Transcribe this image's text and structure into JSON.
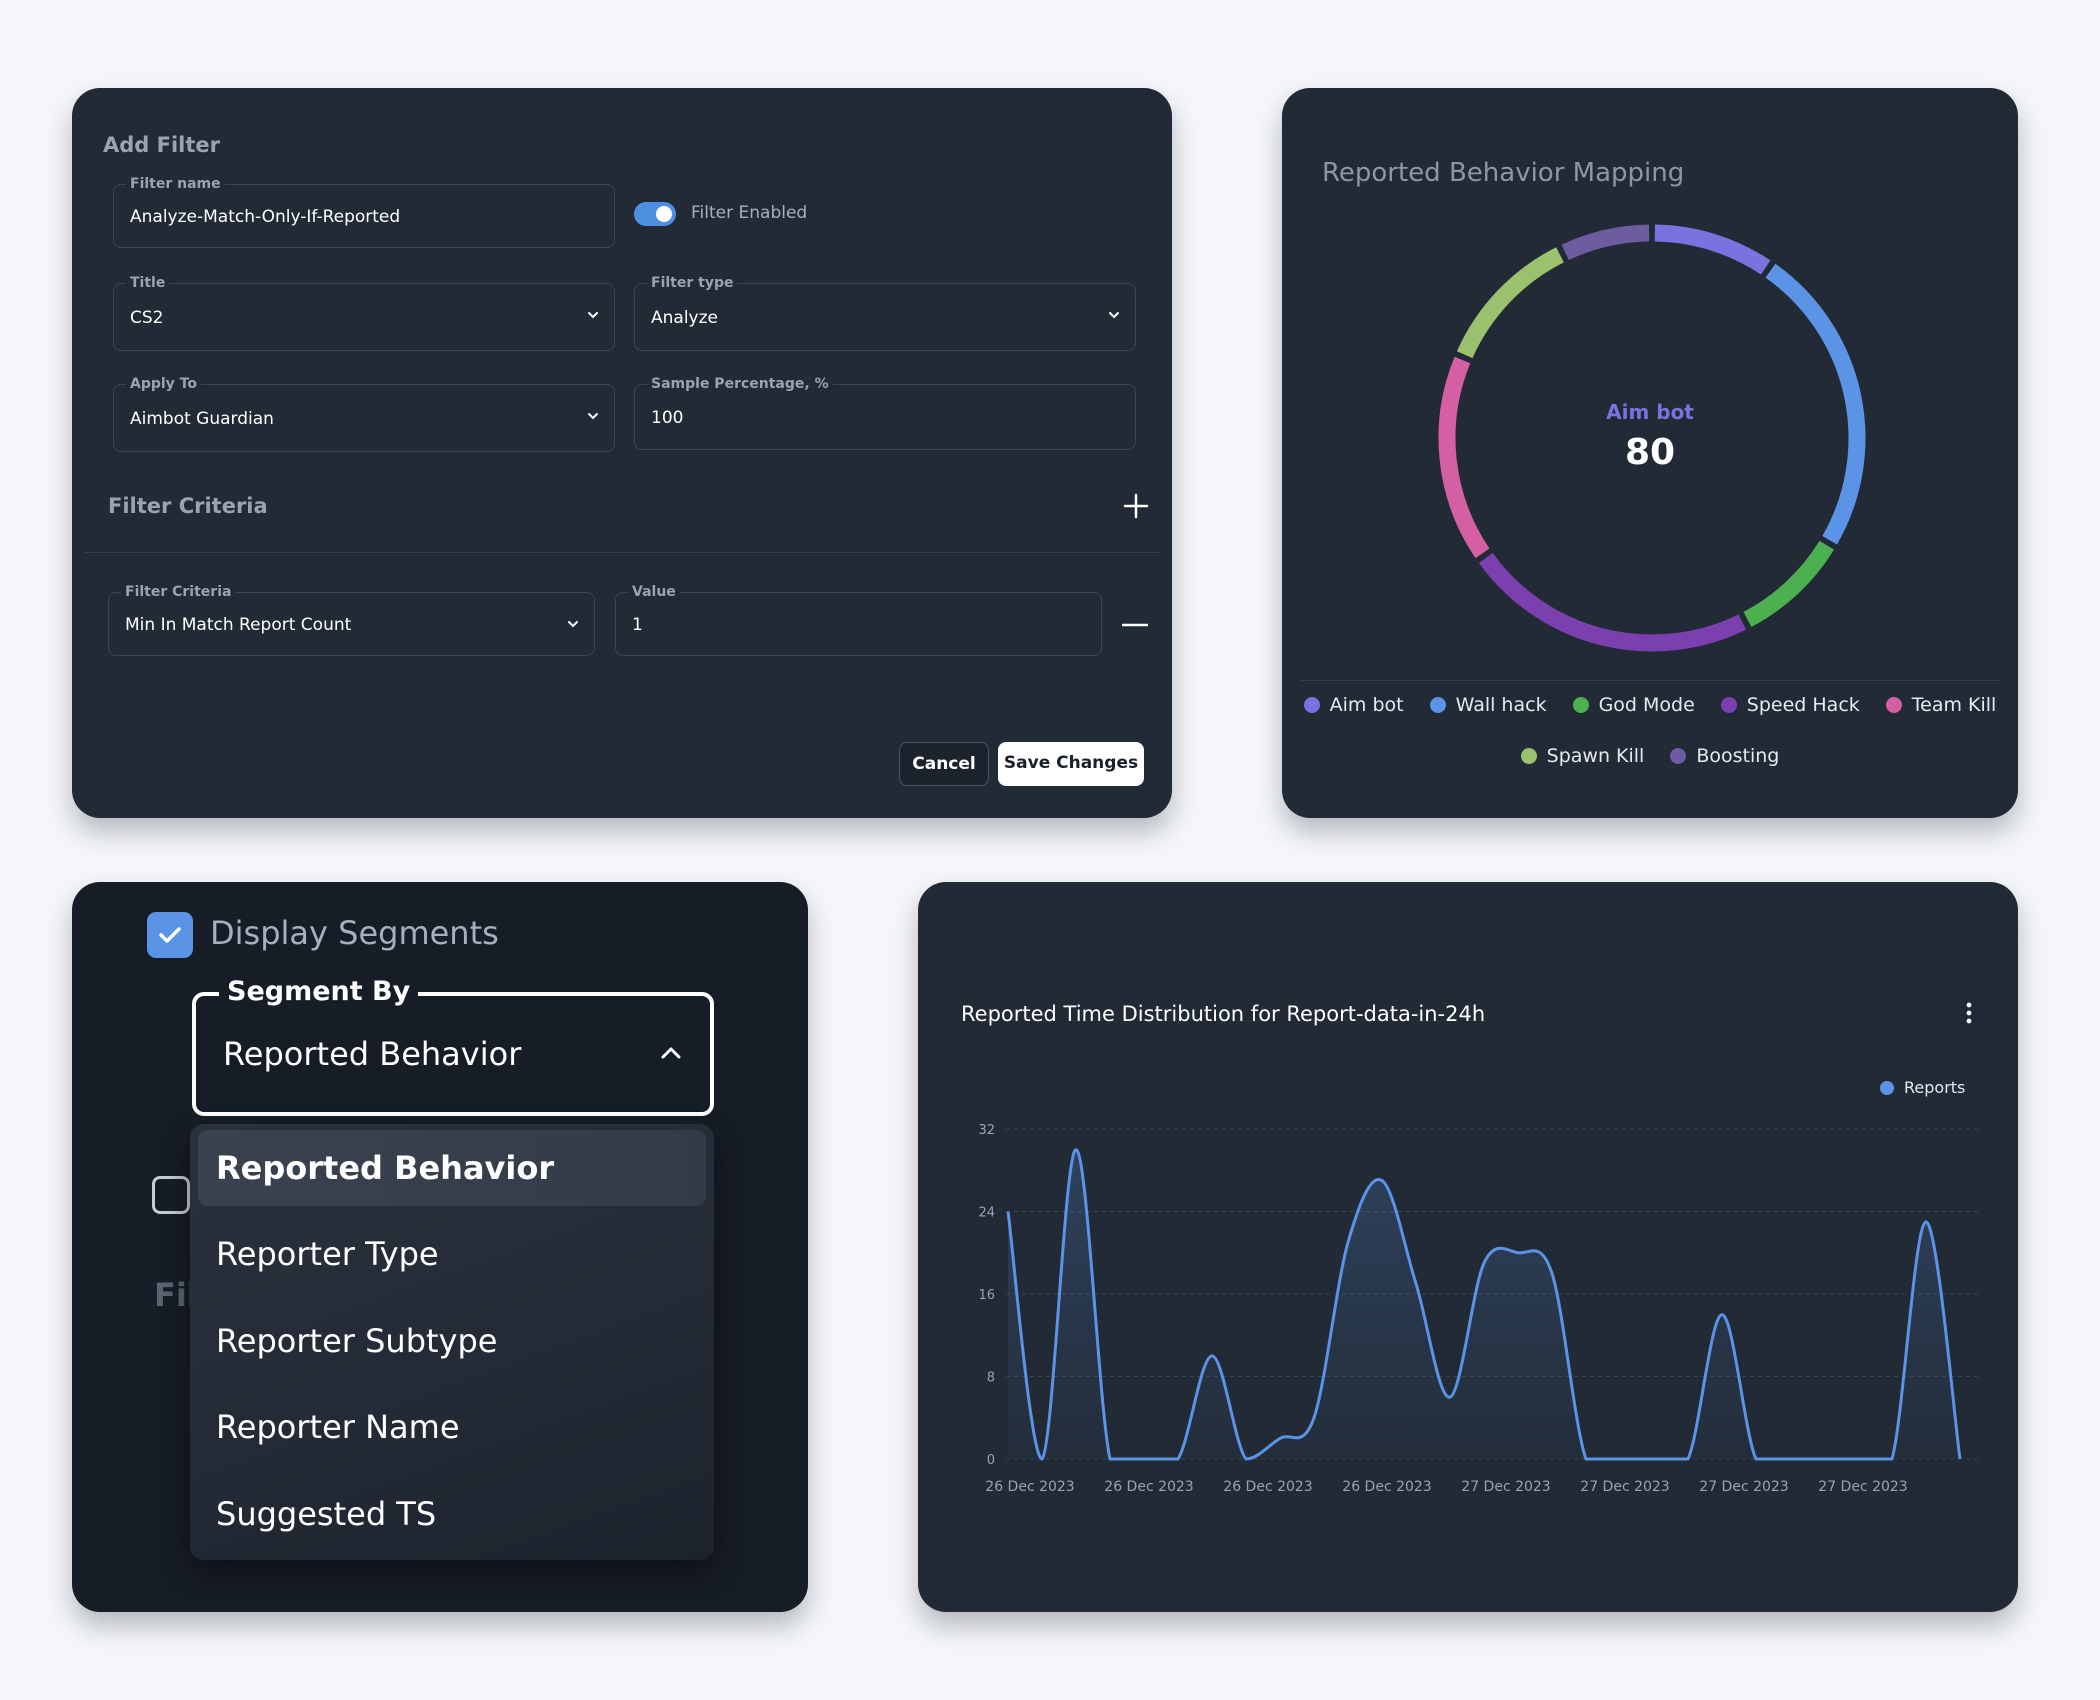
{
  "filter_card": {
    "heading": "Add Filter",
    "filter_name": {
      "label": "Filter name",
      "value": "Analyze-Match-Only-If-Reported"
    },
    "toggle": {
      "label": "Filter Enabled",
      "on": true
    },
    "title_field": {
      "label": "Title",
      "value": "CS2"
    },
    "filter_type": {
      "label": "Filter type",
      "value": "Analyze"
    },
    "apply_to": {
      "label": "Apply To",
      "value": "Aimbot Guardian"
    },
    "sample_percentage": {
      "label": "Sample Percentage, %",
      "value": "100"
    },
    "criteria_heading": "Filter Criteria",
    "criteria_field": {
      "label": "Filter Criteria",
      "value": "Min In Match Report Count"
    },
    "value_field": {
      "label": "Value",
      "value": "1"
    },
    "cancel_label": "Cancel",
    "save_label": "Save Changes"
  },
  "donut_card": {
    "title": "Reported Behavior Mapping",
    "center_label": "Aim bot",
    "center_value": "80",
    "legend": [
      {
        "label": "Aim bot",
        "color": "#7b72e0"
      },
      {
        "label": "Wall hack",
        "color": "#5b93e6"
      },
      {
        "label": "God Mode",
        "color": "#4caf50"
      },
      {
        "label": "Speed Hack",
        "color": "#7b3fb0"
      },
      {
        "label": "Team Kill",
        "color": "#d45fa3"
      },
      {
        "label": "Spawn Kill",
        "color": "#9bc16f"
      },
      {
        "label": "Boosting",
        "color": "#6d5ca0"
      }
    ]
  },
  "segment_card": {
    "display_segments_label": "Display Segments",
    "segment_by_label": "Segment By",
    "segment_by_value": "Reported Behavior",
    "hidden_text": "Fil",
    "options": [
      "Reported Behavior",
      "Reporter Type",
      "Reporter Subtype",
      "Reporter Name",
      "Suggested TS"
    ],
    "selected_index": 0
  },
  "line_card": {
    "title": "Reported Time Distribution for Report-data-in-24h",
    "legend_label": "Reports",
    "accent": "#5b93e6"
  },
  "chart_data": [
    {
      "type": "pie",
      "title": "Reported Behavior Mapping",
      "labels": [
        "Aim bot",
        "Wall hack",
        "God Mode",
        "Speed Hack",
        "Team Kill",
        "Spawn Kill",
        "Boosting"
      ],
      "values": [
        80,
        200,
        75,
        190,
        135,
        95,
        60
      ],
      "colors": [
        "#7b72e0",
        "#5b93e6",
        "#4caf50",
        "#7b3fb0",
        "#d45fa3",
        "#9bc16f",
        "#6d5ca0"
      ],
      "legend_position": "bottom"
    },
    {
      "type": "area",
      "title": "Reported Time Distribution for Report-data-in-24h",
      "xlabel": "",
      "ylabel": "",
      "ylim": [
        0,
        32
      ],
      "yticks": [
        0,
        8,
        16,
        24,
        32
      ],
      "xtick_labels": [
        "26 Dec 2023",
        "26 Dec 2023",
        "26 Dec 2023",
        "26 Dec 2023",
        "27 Dec 2023",
        "27 Dec 2023",
        "27 Dec 2023",
        "27 Dec 2023"
      ],
      "grid": true,
      "legend_position": "top-right",
      "series": [
        {
          "name": "Reports",
          "color": "#5b93e6",
          "values": [
            24,
            0,
            30,
            0,
            0,
            0,
            10,
            0,
            2,
            4,
            21,
            27,
            17,
            6,
            19,
            20,
            18,
            0,
            0,
            0,
            0,
            14,
            0,
            0,
            0,
            0,
            0,
            23,
            0
          ]
        }
      ]
    }
  ]
}
